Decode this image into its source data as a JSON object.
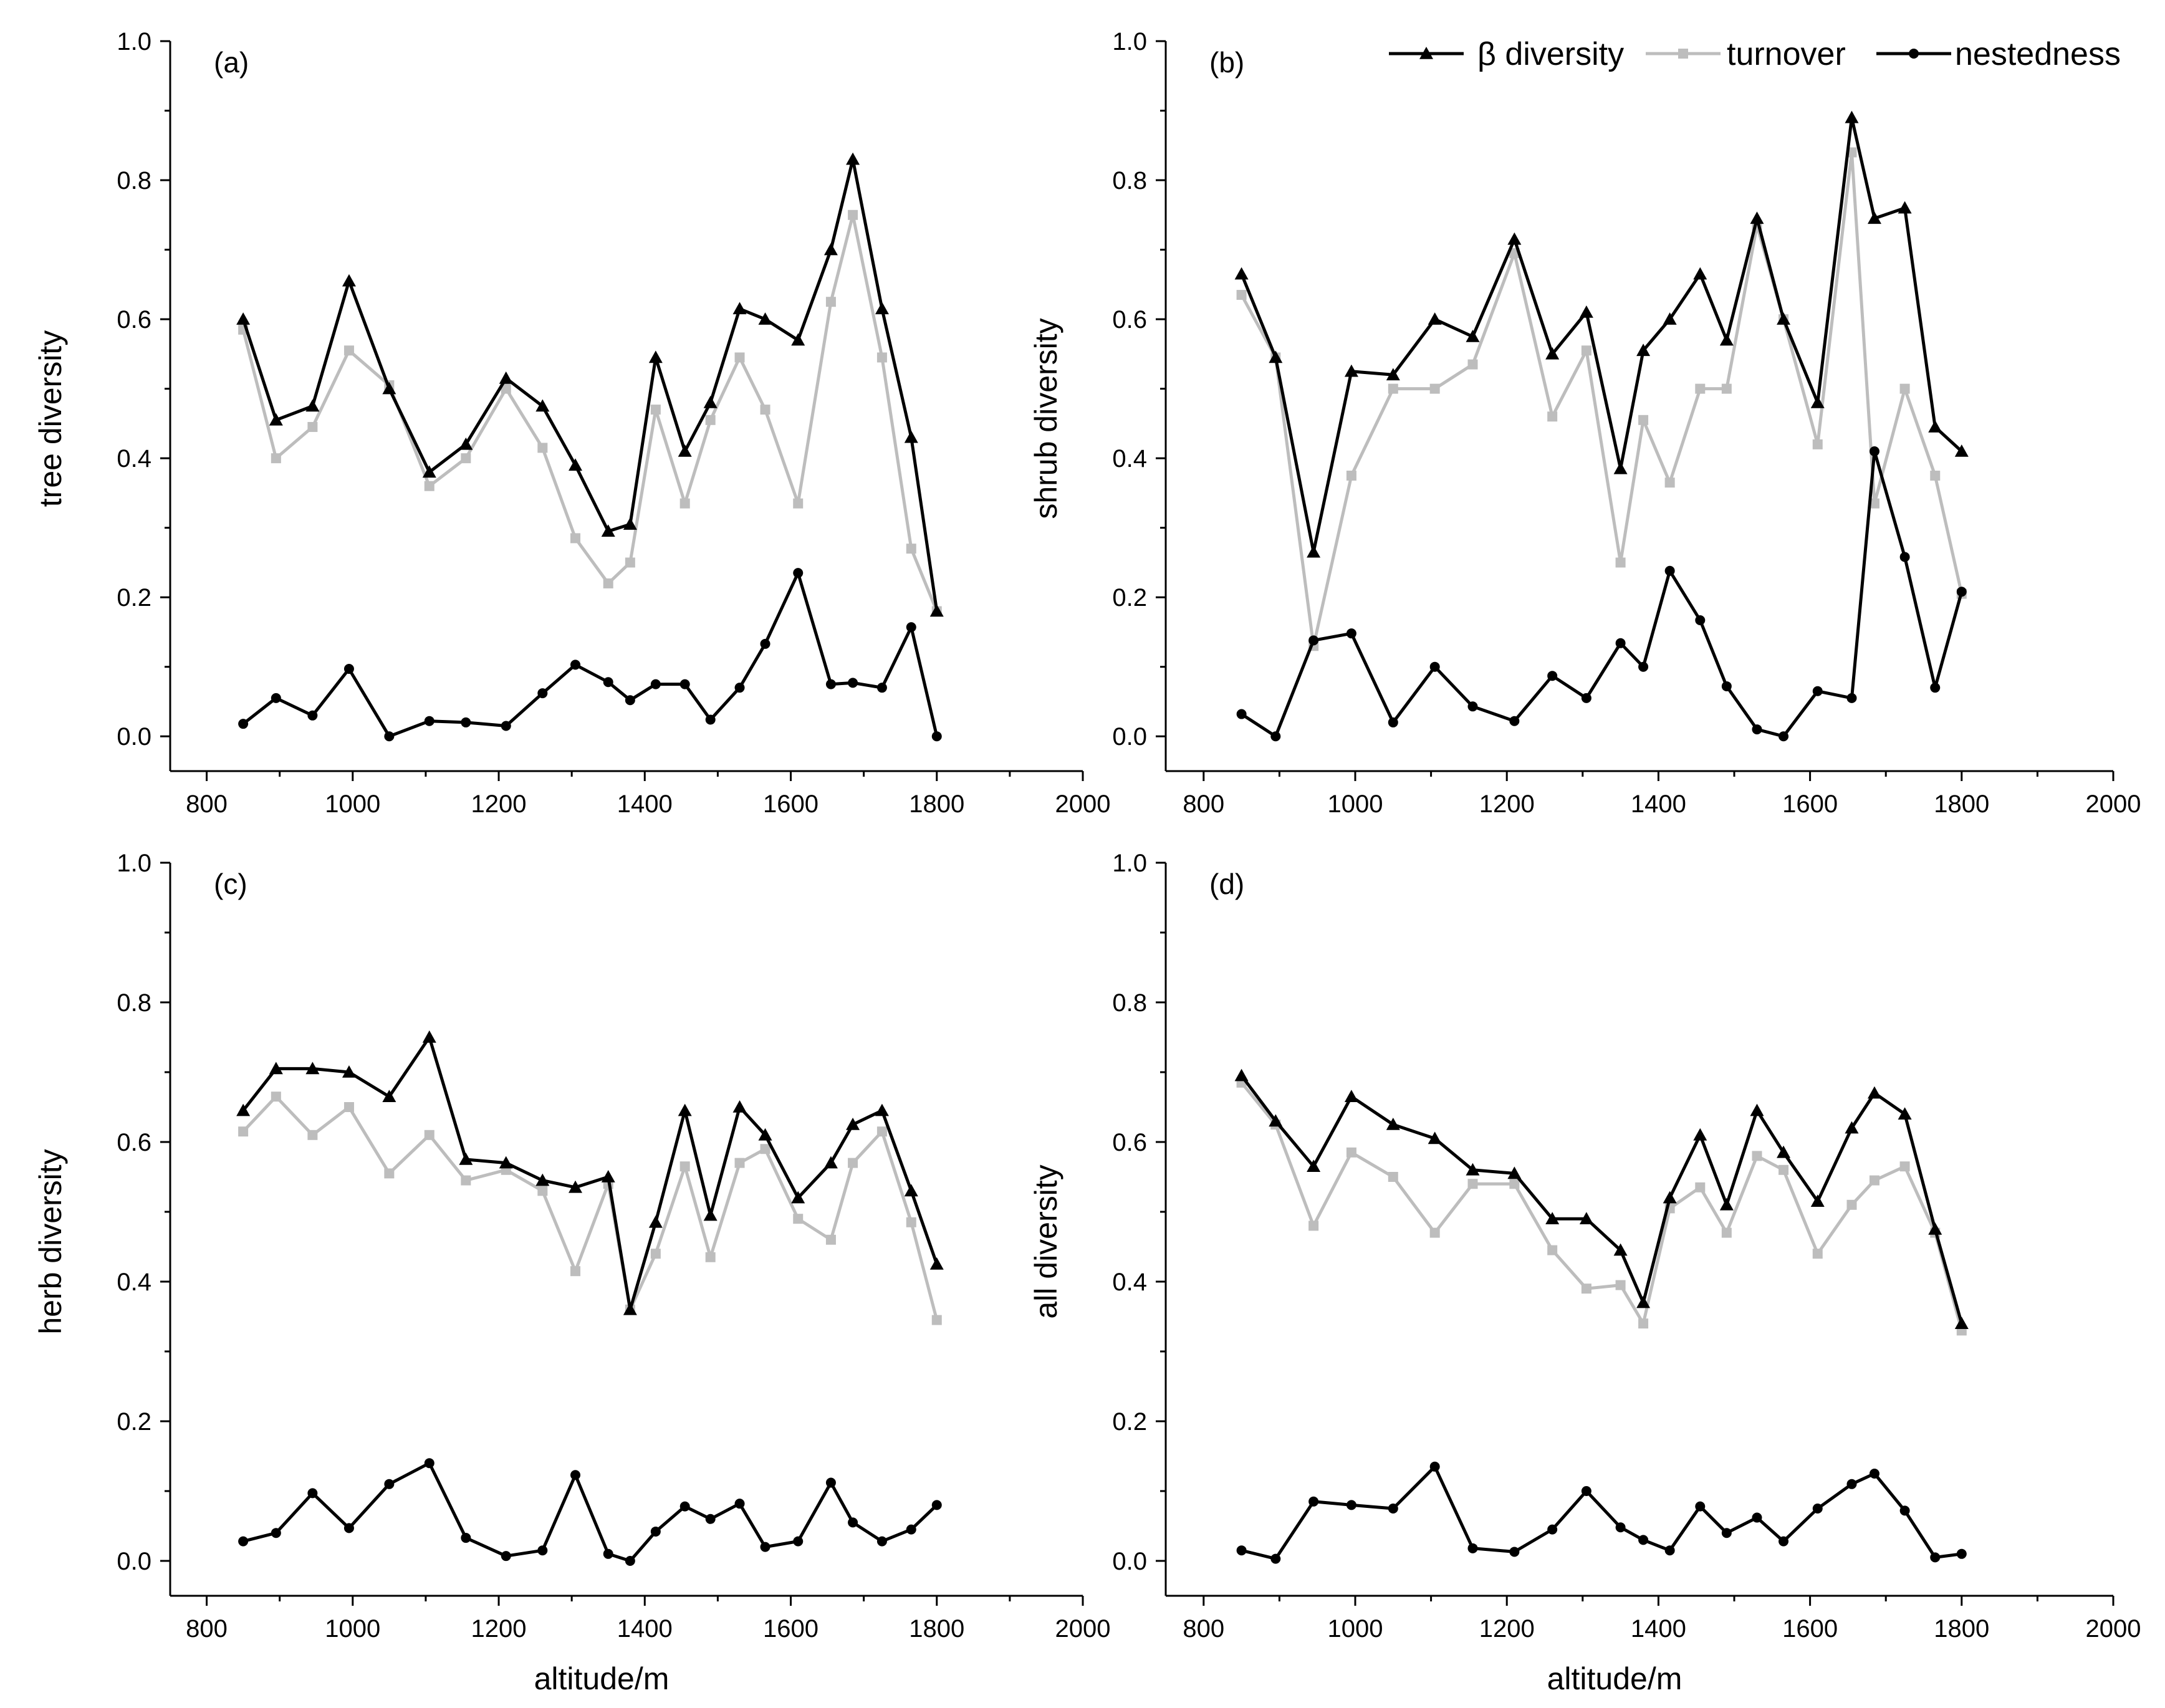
{
  "legend": {
    "beta": "β diversity",
    "turnover": "turnover",
    "nestedness": "nestedness"
  },
  "colors": {
    "beta": "#000000",
    "turnover": "#bdbdbd",
    "nestedness": "#000000"
  },
  "chart_data": [
    {
      "type": "line",
      "panel": "(a)",
      "ylabel": "tree diversity",
      "xlabel": "",
      "xlim": [
        750,
        2000
      ],
      "ylim": [
        -0.05,
        1.0
      ],
      "xticks": [
        "800",
        "1000",
        "1200",
        "1400",
        "1600",
        "1800",
        "2000"
      ],
      "yticks": [
        "0.0",
        "0.2",
        "0.4",
        "0.6",
        "0.8",
        "1.0"
      ],
      "x": [
        850,
        895,
        945,
        995,
        1050,
        1105,
        1155,
        1210,
        1260,
        1305,
        1350,
        1380,
        1415,
        1455,
        1490,
        1530,
        1565,
        1610,
        1655,
        1685,
        1725,
        1765,
        1800
      ],
      "series": [
        {
          "name": "β diversity",
          "values": [
            0.6,
            0.455,
            0.475,
            0.655,
            0.5,
            0.38,
            0.42,
            0.515,
            0.475,
            0.39,
            0.295,
            0.305,
            0.545,
            0.41,
            0.48,
            0.615,
            0.6,
            0.57,
            0.7,
            0.83,
            0.615,
            0.43,
            0.18
          ]
        },
        {
          "name": "turnover",
          "values": [
            0.585,
            0.4,
            0.445,
            0.555,
            0.505,
            0.36,
            0.4,
            0.5,
            0.415,
            0.285,
            0.22,
            0.25,
            0.47,
            0.335,
            0.455,
            0.545,
            0.47,
            0.335,
            0.625,
            0.75,
            0.545,
            0.27,
            0.18
          ]
        },
        {
          "name": "nestedness",
          "values": [
            0.018,
            0.055,
            0.03,
            0.097,
            0.0,
            0.022,
            0.02,
            0.015,
            0.062,
            0.103,
            0.078,
            0.052,
            0.075,
            0.075,
            0.024,
            0.07,
            0.133,
            0.235,
            0.075,
            0.077,
            0.07,
            0.157,
            0.0
          ]
        }
      ]
    },
    {
      "type": "line",
      "panel": "(b)",
      "ylabel": "shrub diversity",
      "xlabel": "",
      "xlim": [
        750,
        2000
      ],
      "ylim": [
        -0.05,
        1.0
      ],
      "xticks": [
        "800",
        "1000",
        "1200",
        "1400",
        "1600",
        "1800",
        "2000"
      ],
      "yticks": [
        "0.0",
        "0.2",
        "0.4",
        "0.6",
        "0.8",
        "1.0"
      ],
      "x": [
        850,
        895,
        945,
        995,
        1050,
        1105,
        1155,
        1210,
        1260,
        1305,
        1350,
        1380,
        1415,
        1455,
        1490,
        1530,
        1565,
        1610,
        1655,
        1685,
        1725,
        1765,
        1800
      ],
      "series": [
        {
          "name": "β diversity",
          "values": [
            0.665,
            0.545,
            0.265,
            0.525,
            0.52,
            0.6,
            0.575,
            0.715,
            0.55,
            0.61,
            0.385,
            0.555,
            0.6,
            0.665,
            0.57,
            0.745,
            0.6,
            0.48,
            0.89,
            0.745,
            0.76,
            0.445,
            0.41
          ]
        },
        {
          "name": "turnover",
          "values": [
            0.635,
            0.545,
            0.13,
            0.375,
            0.5,
            0.5,
            0.535,
            0.695,
            0.46,
            0.555,
            0.25,
            0.455,
            0.365,
            0.5,
            0.5,
            0.735,
            0.6,
            0.42,
            0.84,
            0.335,
            0.5,
            0.375,
            0.205
          ]
        },
        {
          "name": "nestedness",
          "values": [
            0.032,
            0.0,
            0.138,
            0.148,
            0.02,
            0.1,
            0.043,
            0.022,
            0.087,
            0.055,
            0.134,
            0.1,
            0.238,
            0.167,
            0.072,
            0.01,
            0.0,
            0.065,
            0.055,
            0.41,
            0.258,
            0.07,
            0.208
          ]
        }
      ]
    },
    {
      "type": "line",
      "panel": "(c)",
      "ylabel": "herb diversity",
      "xlabel": "altitude/m",
      "xlim": [
        750,
        2000
      ],
      "ylim": [
        -0.05,
        1.0
      ],
      "xticks": [
        "800",
        "1000",
        "1200",
        "1400",
        "1600",
        "1800",
        "2000"
      ],
      "yticks": [
        "0.0",
        "0.2",
        "0.4",
        "0.6",
        "0.8",
        "1.0"
      ],
      "x": [
        850,
        895,
        945,
        995,
        1050,
        1105,
        1155,
        1210,
        1260,
        1305,
        1350,
        1380,
        1415,
        1455,
        1490,
        1530,
        1565,
        1610,
        1655,
        1685,
        1725,
        1765,
        1800
      ],
      "series": [
        {
          "name": "β diversity",
          "values": [
            0.645,
            0.705,
            0.705,
            0.7,
            0.665,
            0.75,
            0.575,
            0.57,
            0.545,
            0.535,
            0.55,
            0.36,
            0.485,
            0.645,
            0.495,
            0.65,
            0.61,
            0.52,
            0.57,
            0.625,
            0.645,
            0.53,
            0.425
          ]
        },
        {
          "name": "turnover",
          "values": [
            0.615,
            0.665,
            0.61,
            0.65,
            0.555,
            0.61,
            0.545,
            0.56,
            0.53,
            0.415,
            0.54,
            0.36,
            0.44,
            0.565,
            0.435,
            0.57,
            0.59,
            0.49,
            0.46,
            0.57,
            0.615,
            0.485,
            0.345
          ]
        },
        {
          "name": "nestedness",
          "values": [
            0.028,
            0.04,
            0.097,
            0.047,
            0.11,
            0.14,
            0.033,
            0.007,
            0.015,
            0.123,
            0.01,
            0.0,
            0.042,
            0.078,
            0.06,
            0.082,
            0.02,
            0.028,
            0.112,
            0.055,
            0.028,
            0.045,
            0.08
          ]
        }
      ]
    },
    {
      "type": "line",
      "panel": "(d)",
      "ylabel": "all diversity",
      "xlabel": "altitude/m",
      "xlim": [
        750,
        2000
      ],
      "ylim": [
        -0.05,
        1.0
      ],
      "xticks": [
        "800",
        "1000",
        "1200",
        "1400",
        "1600",
        "1800",
        "2000"
      ],
      "yticks": [
        "0.0",
        "0.2",
        "0.4",
        "0.6",
        "0.8",
        "1.0"
      ],
      "x": [
        850,
        895,
        945,
        995,
        1050,
        1105,
        1155,
        1210,
        1260,
        1305,
        1350,
        1380,
        1415,
        1455,
        1490,
        1530,
        1565,
        1610,
        1655,
        1685,
        1725,
        1765,
        1800
      ],
      "series": [
        {
          "name": "β diversity",
          "values": [
            0.695,
            0.63,
            0.565,
            0.665,
            0.625,
            0.605,
            0.56,
            0.555,
            0.49,
            0.49,
            0.445,
            0.37,
            0.52,
            0.61,
            0.51,
            0.645,
            0.585,
            0.515,
            0.62,
            0.67,
            0.64,
            0.475,
            0.34
          ]
        },
        {
          "name": "turnover",
          "values": [
            0.685,
            0.625,
            0.48,
            0.585,
            0.55,
            0.47,
            0.54,
            0.54,
            0.445,
            0.39,
            0.395,
            0.34,
            0.505,
            0.535,
            0.47,
            0.58,
            0.56,
            0.44,
            0.51,
            0.545,
            0.565,
            0.47,
            0.33
          ]
        },
        {
          "name": "nestedness",
          "values": [
            0.015,
            0.003,
            0.085,
            0.08,
            0.075,
            0.135,
            0.018,
            0.013,
            0.045,
            0.1,
            0.048,
            0.03,
            0.015,
            0.078,
            0.04,
            0.062,
            0.028,
            0.075,
            0.11,
            0.125,
            0.072,
            0.005,
            0.01
          ]
        }
      ]
    }
  ]
}
